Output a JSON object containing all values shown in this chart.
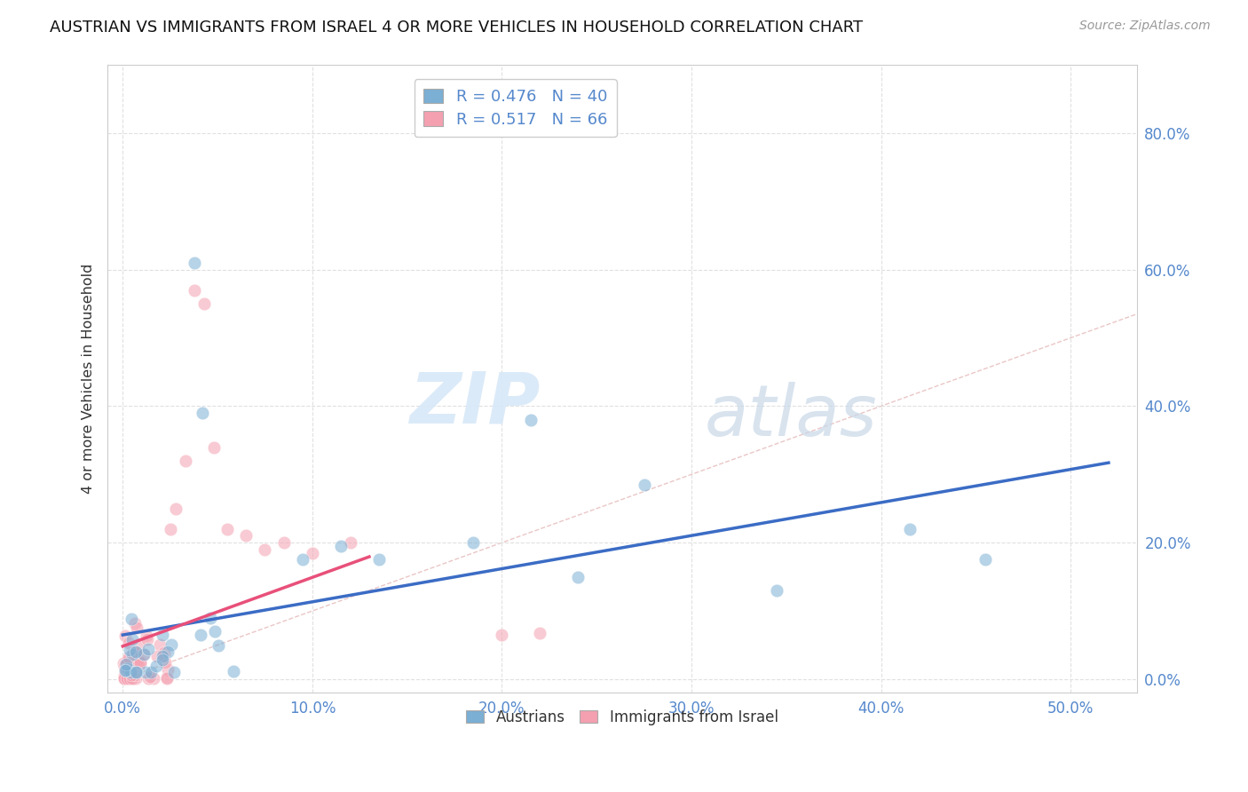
{
  "title": "AUSTRIAN VS IMMIGRANTS FROM ISRAEL 4 OR MORE VEHICLES IN HOUSEHOLD CORRELATION CHART",
  "source": "Source: ZipAtlas.com",
  "xlabel_values": [
    0.0,
    0.1,
    0.2,
    0.3,
    0.4,
    0.5
  ],
  "ylabel_values": [
    0.0,
    0.2,
    0.4,
    0.6,
    0.8
  ],
  "ylabel_label": "4 or more Vehicles in Household",
  "xlim": [
    -0.008,
    0.535
  ],
  "ylim": [
    -0.02,
    0.9
  ],
  "legend_r_austrians": "R = 0.476",
  "legend_n_austrians": "N = 40",
  "legend_r_israel": "R = 0.517",
  "legend_n_israel": "N = 66",
  "color_austrians": "#7BAFD4",
  "color_israel": "#F4A0B0",
  "color_trend_austrians": "#3B6CC5",
  "color_trend_israel": "#E8507A",
  "color_diagonal": "#C8C8C8",
  "watermark_zip": "ZIP",
  "watermark_atlas": "atlas",
  "background_color": "#FFFFFF",
  "grid_color": "#E0E0E0",
  "tick_color": "#5588CC",
  "austria_trend_xrange": [
    0.0,
    0.52
  ],
  "israel_trend_xrange": [
    0.0,
    0.13
  ]
}
